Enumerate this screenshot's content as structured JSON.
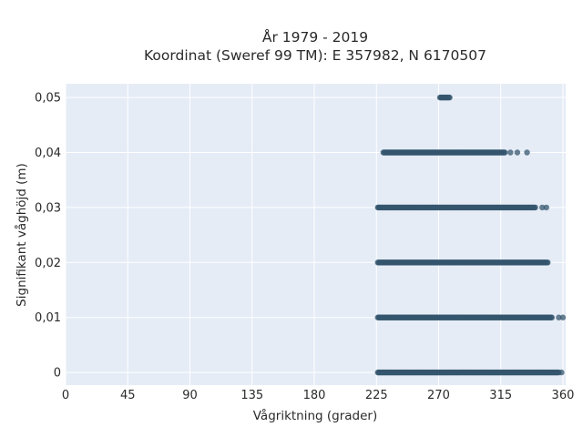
{
  "chart_data": {
    "type": "scatter",
    "title": "År 1979 - 2019",
    "subtitle": "Koordinat (Sweref 99 TM): E 357982, N 6170507",
    "xlabel": "Vågriktning (grader)",
    "ylabel": "Signifikant våghöjd (m)",
    "xlim": [
      0,
      362
    ],
    "ylim": [
      -0.0023,
      0.0525
    ],
    "grid": true,
    "x_ticks": [
      0,
      45,
      90,
      135,
      180,
      225,
      270,
      315,
      360
    ],
    "x_tick_labels": [
      "0",
      "45",
      "90",
      "135",
      "180",
      "225",
      "270",
      "315",
      "360"
    ],
    "y_ticks": [
      0,
      0.01,
      0.02,
      0.03,
      0.04,
      0.05
    ],
    "y_tick_labels": [
      "0",
      "0,01",
      "0,02",
      "0,03",
      "0,04",
      "0,05"
    ],
    "marker_color": "#34566d",
    "bands": [
      {
        "y": 0,
        "x_min": 226,
        "x_max": 357,
        "outliers": [
          359
        ]
      },
      {
        "y": 0.01,
        "x_min": 226,
        "x_max": 352,
        "outliers": [
          357,
          360
        ]
      },
      {
        "y": 0.02,
        "x_min": 226,
        "x_max": 349,
        "outliers": []
      },
      {
        "y": 0.03,
        "x_min": 226,
        "x_max": 340,
        "outliers": [
          345,
          348
        ]
      },
      {
        "y": 0.04,
        "x_min": 230,
        "x_max": 318,
        "outliers": [
          322,
          327,
          334
        ]
      },
      {
        "y": 0.05,
        "x_min": 271,
        "x_max": 278,
        "outliers": []
      }
    ]
  }
}
